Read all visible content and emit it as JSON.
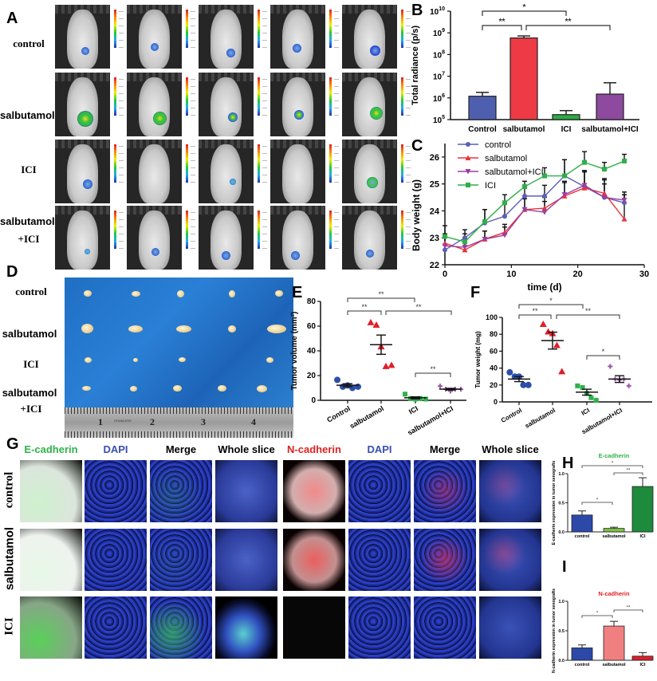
{
  "panels": {
    "A": {
      "label": "A",
      "rows": [
        {
          "label": "control",
          "font": "serif"
        },
        {
          "label": "salbutamol",
          "font": "sans"
        },
        {
          "label": "ICI",
          "font": "serif"
        },
        {
          "label": "salbutamol",
          "label2": "+ICI",
          "font": "sans"
        }
      ],
      "columns": 5,
      "description": "Bioluminescence images of tumor-bearing nude mice with color intensity scale bars"
    },
    "D": {
      "label": "D",
      "rows": [
        {
          "label": "control"
        },
        {
          "label": "salbutamol"
        },
        {
          "label": "ICI"
        },
        {
          "label": "salbutamol",
          "label2": "+ICI"
        }
      ],
      "ruler": {
        "numbers": [
          "1",
          "2",
          "3",
          "4"
        ],
        "stamp": "STAINLESS"
      }
    },
    "G": {
      "label": "G",
      "left_headers": [
        "E-cadherin",
        "DAPI",
        "Merge",
        "Whole slice"
      ],
      "right_headers": [
        "N-cadherin",
        "DAPI",
        "Merge",
        "Whole slice"
      ],
      "header_colors": {
        "E-cadherin": "#2fb24a",
        "DAPI": "#3a4fb0",
        "Merge": "#000000",
        "Whole slice": "#000000",
        "N-cadherin": "#e02020"
      },
      "rows": [
        "control",
        "salbutamol",
        "ICI"
      ]
    }
  },
  "chart_data": [
    {
      "panel": "B",
      "type": "bar",
      "title": "",
      "xlabel": "",
      "ylabel": "Total radiance (p/s)",
      "yscale": "log",
      "ylim": [
        100000,
        10000000000
      ],
      "yticks": [
        "10^5",
        "10^6",
        "10^7",
        "10^8",
        "10^9",
        "10^10"
      ],
      "categories": [
        "Control",
        "salbutamol",
        "ICI",
        "salbutamol+ICI"
      ],
      "values": [
        1200000,
        580000000,
        170000,
        1500000
      ],
      "errors_upper": [
        1800000,
        720000000,
        260000,
        5000000
      ],
      "colors": [
        "#4f5fb0",
        "#ee3a45",
        "#2eaa44",
        "#8e4a9e"
      ],
      "significance": [
        {
          "from": "Control",
          "to": "salbutamol",
          "label": "**"
        },
        {
          "from": "Control",
          "to": "ICI",
          "label": "*"
        },
        {
          "from": "salbutamol",
          "to": "salbutamol+ICI",
          "label": "**"
        }
      ]
    },
    {
      "panel": "C",
      "type": "line",
      "title": "",
      "xlabel": "time (d)",
      "ylabel": "Body weight (g)",
      "xlim": [
        0,
        30
      ],
      "ylim": [
        22,
        26.5
      ],
      "xticks": [
        0,
        10,
        20,
        30
      ],
      "yticks": [
        22,
        23,
        24,
        25,
        26
      ],
      "legend_position": "upper-left",
      "x": [
        0,
        3,
        6,
        9,
        12,
        15,
        18,
        21,
        24,
        27
      ],
      "series": [
        {
          "name": "control",
          "color": "#5b5fb8",
          "marker": "circle",
          "values": [
            22.55,
            23.0,
            23.55,
            23.8,
            24.55,
            24.55,
            25.3,
            24.9,
            24.5,
            24.3
          ],
          "errors": [
            0.6,
            0.3,
            0.5,
            0.5,
            0.4,
            0.4,
            0.6,
            0.6,
            0.7,
            0.3
          ]
        },
        {
          "name": "salbutamol",
          "color": "#e8323c",
          "marker": "triangle-up",
          "values": [
            22.8,
            22.55,
            22.95,
            23.2,
            24.05,
            24.1,
            24.55,
            24.85,
            24.65,
            23.7
          ],
          "errors": [
            0.3,
            0.3,
            0.3,
            0.3,
            0.4,
            0.4,
            0.5,
            0.6,
            0.5,
            0.9
          ]
        },
        {
          "name": "salbutamol+ICI",
          "color": "#9a3fa0",
          "marker": "triangle-down",
          "values": [
            22.7,
            22.65,
            22.95,
            23.1,
            24.05,
            23.95,
            24.6,
            24.95,
            24.5,
            24.4
          ],
          "errors": [
            0.3,
            0.3,
            0.3,
            0.3,
            0.4,
            0.4,
            0.5,
            0.5,
            0.5,
            0.3
          ]
        },
        {
          "name": "ICI",
          "color": "#2fae49",
          "marker": "square",
          "values": [
            23.05,
            22.85,
            23.6,
            24.3,
            24.9,
            25.3,
            25.3,
            25.8,
            25.55,
            25.85
          ],
          "errors": [
            0.4,
            0.3,
            0.45,
            0.3,
            0.2,
            0.3,
            0.6,
            0.4,
            0.25,
            0.25
          ]
        }
      ]
    },
    {
      "panel": "E",
      "type": "scatter",
      "title": "",
      "xlabel": "",
      "ylabel": "Tumor volume (mm²)",
      "ylim": [
        0,
        80
      ],
      "yticks": [
        0,
        20,
        40,
        60,
        80
      ],
      "categories": [
        "Control",
        "salbutamol",
        "ICI",
        "salbutamol+ICI"
      ],
      "series": [
        {
          "name": "Control",
          "color": "#2d4fa8",
          "marker": "circle",
          "points": [
            16.5,
            11,
            12,
            10,
            11
          ],
          "mean": 12.2,
          "sem": 1.2
        },
        {
          "name": "salbutamol",
          "color": "#e01e2a",
          "marker": "triangle-up",
          "points": [
            63,
            61,
            43.5,
            27.5,
            28.5
          ],
          "mean": 45,
          "sem": 7.8
        },
        {
          "name": "ICI",
          "color": "#2fb24a",
          "marker": "square",
          "points": [
            5,
            1.5,
            1,
            1.5,
            1
          ],
          "mean": 2,
          "sem": 0.8
        },
        {
          "name": "salbutamol+ICI",
          "color": "#9a5aa8",
          "marker": "plus",
          "points": [
            11.5,
            9,
            7.5,
            9,
            9
          ],
          "mean": 9,
          "sem": 0.7
        }
      ],
      "significance": [
        {
          "from": "Control",
          "to": "salbutamol",
          "label": "**"
        },
        {
          "from": "Control",
          "to": "ICI",
          "label": "**"
        },
        {
          "from": "salbutamol",
          "to": "salbutamol+ICI",
          "label": "**"
        },
        {
          "from": "ICI",
          "to": "salbutamol+ICI",
          "label": "**"
        }
      ]
    },
    {
      "panel": "F",
      "type": "scatter",
      "title": "",
      "xlabel": "",
      "ylabel": "Tumor weight (mg)",
      "ylim": [
        0,
        100
      ],
      "yticks": [
        0,
        20,
        40,
        60,
        80,
        100
      ],
      "categories": [
        "Control",
        "salbutamol",
        "ICI",
        "salbutamol+ICI"
      ],
      "series": [
        {
          "name": "Control",
          "color": "#2d4fa8",
          "marker": "circle",
          "points": [
            35,
            30,
            30,
            20,
            20
          ],
          "mean": 27,
          "sem": 3
        },
        {
          "name": "salbutamol",
          "color": "#e01e2a",
          "marker": "triangle-up",
          "points": [
            92,
            83,
            81,
            67,
            36
          ],
          "mean": 72.5,
          "sem": 10
        },
        {
          "name": "ICI",
          "color": "#2fb24a",
          "marker": "square",
          "points": [
            19,
            17,
            10,
            5,
            2
          ],
          "mean": 11.5,
          "sem": 3.5
        },
        {
          "name": "salbutamol+ICI",
          "color": "#9a5aa8",
          "marker": "plus",
          "points": [
            42,
            27,
            26,
            27,
            19
          ],
          "mean": 27,
          "sem": 4
        }
      ],
      "significance": [
        {
          "from": "Control",
          "to": "salbutamol",
          "label": "**"
        },
        {
          "from": "Control",
          "to": "ICI",
          "label": "*"
        },
        {
          "from": "salbutamol",
          "to": "salbutamol+ICI",
          "label": "**"
        },
        {
          "from": "ICI",
          "to": "salbutamol+ICI",
          "label": "*"
        }
      ]
    },
    {
      "panel": "H",
      "type": "bar",
      "title": "E-cadherin",
      "xlabel": "",
      "ylabel": "E-cadherin expression in tumor xenografts",
      "ylim": [
        0,
        1.0
      ],
      "yticks": [
        "0.0",
        "0.5",
        "1.0"
      ],
      "categories": [
        "control",
        "salbutamol",
        "ICI"
      ],
      "values": [
        0.29,
        0.06,
        0.78
      ],
      "errors": [
        0.07,
        0.02,
        0.15
      ],
      "colors": [
        "#2c48a8",
        "#7cc142",
        "#1e8a3c"
      ],
      "significance": [
        {
          "from": "control",
          "to": "ICI",
          "label": "*"
        },
        {
          "from": "salbutamol",
          "to": "ICI",
          "label": "**"
        },
        {
          "from": "control",
          "to": "salbutamol",
          "label": "*"
        }
      ]
    },
    {
      "panel": "I",
      "type": "bar",
      "title": "N-cadherin",
      "xlabel": "",
      "ylabel": "N-cadherin expression in tumor xenografts",
      "ylim": [
        0,
        1.0
      ],
      "yticks": [
        "0.0",
        "0.5",
        "1.0"
      ],
      "categories": [
        "control",
        "salbutamol",
        "ICI"
      ],
      "values": [
        0.21,
        0.58,
        0.07
      ],
      "errors": [
        0.05,
        0.08,
        0.06
      ],
      "colors": [
        "#2c48a8",
        "#f08080",
        "#d8202a"
      ],
      "significance": [
        {
          "from": "control",
          "to": "salbutamol",
          "label": "*"
        },
        {
          "from": "salbutamol",
          "to": "ICI",
          "label": "**"
        }
      ]
    }
  ]
}
